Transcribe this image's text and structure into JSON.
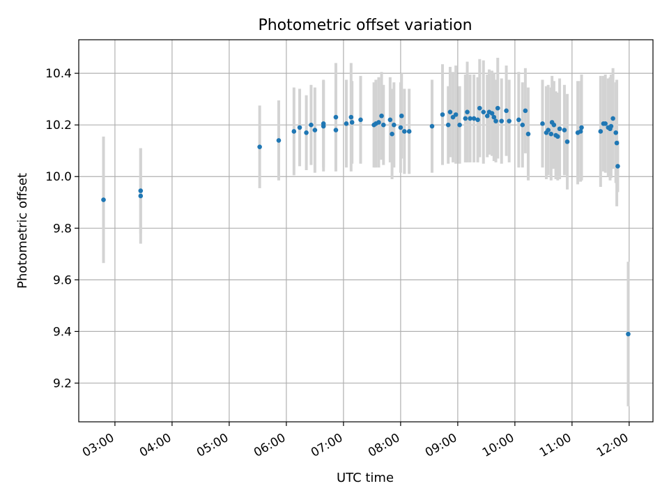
{
  "chart_data": {
    "type": "scatter",
    "title": "Photometric offset variation",
    "xlabel": "UTC time",
    "ylabel": "Photometric offset",
    "xlim": [
      "02:22",
      "12:25"
    ],
    "ylim": [
      9.05,
      10.53
    ],
    "x_ticks": [
      "03:00",
      "04:00",
      "05:00",
      "06:00",
      "07:00",
      "08:00",
      "09:00",
      "10:00",
      "11:00",
      "12:00"
    ],
    "y_ticks": [
      9.2,
      9.4,
      9.6,
      9.8,
      10.0,
      10.2,
      10.4
    ],
    "grid": true,
    "marker_color": "#1f77b4",
    "errorbar_color": "#d3d3d3",
    "series": [
      {
        "x": [
          "02:48",
          "03:27",
          "03:27",
          "05:32",
          "05:52",
          "06:08",
          "06:14",
          "06:21",
          "06:26",
          "06:30",
          "06:39",
          "06:39",
          "06:52",
          "06:52",
          "07:03",
          "07:08",
          "07:09",
          "07:18",
          "07:32",
          "07:34",
          "07:37",
          "07:40",
          "07:42",
          "07:49",
          "07:51",
          "07:53",
          "08:00",
          "08:01",
          "08:04",
          "08:09",
          "08:33",
          "08:44",
          "08:50",
          "08:52",
          "08:55",
          "08:58",
          "09:02",
          "09:08",
          "09:10",
          "09:13",
          "09:17",
          "09:21",
          "09:23",
          "09:27",
          "09:31",
          "09:33",
          "09:36",
          "09:38",
          "09:40",
          "09:42",
          "09:46",
          "09:51",
          "09:54",
          "10:04",
          "10:08",
          "10:11",
          "10:14",
          "10:29",
          "10:33",
          "10:35",
          "10:38",
          "10:39",
          "10:41",
          "10:43",
          "10:45",
          "10:47",
          "10:52",
          "10:55",
          "11:06",
          "11:09",
          "11:10",
          "11:30",
          "11:33",
          "11:35",
          "11:38",
          "11:40",
          "11:41",
          "11:43",
          "11:46",
          "11:47",
          "11:48"
        ],
        "y": [
          9.91,
          9.925,
          9.945,
          10.115,
          10.14,
          10.175,
          10.19,
          10.17,
          10.2,
          10.18,
          10.195,
          10.205,
          10.23,
          10.18,
          10.205,
          10.23,
          10.21,
          10.22,
          10.2,
          10.205,
          10.21,
          10.235,
          10.2,
          10.22,
          10.165,
          10.2,
          10.19,
          10.235,
          10.175,
          10.175,
          10.195,
          10.24,
          10.2,
          10.25,
          10.23,
          10.24,
          10.2,
          10.225,
          10.25,
          10.225,
          10.225,
          10.22,
          10.265,
          10.25,
          10.235,
          10.25,
          10.245,
          10.23,
          10.215,
          10.265,
          10.215,
          10.255,
          10.215,
          10.22,
          10.2,
          10.255,
          10.165,
          10.205,
          10.17,
          10.18,
          10.165,
          10.21,
          10.2,
          10.16,
          10.155,
          10.185,
          10.18,
          10.135,
          10.17,
          10.175,
          10.19,
          10.175,
          10.205,
          10.205,
          10.19,
          10.185,
          10.195,
          10.225,
          10.17,
          10.13,
          10.04
        ],
        "yerr": [
          0.245,
          0.185,
          0.165,
          0.16,
          0.155,
          0.17,
          0.15,
          0.145,
          0.155,
          0.165,
          0.175,
          0.17,
          0.21,
          0.15,
          0.17,
          0.21,
          0.16,
          0.17,
          0.165,
          0.17,
          0.175,
          0.17,
          0.155,
          0.165,
          0.175,
          0.165,
          0.175,
          0.165,
          0.165,
          0.165,
          0.18,
          0.195,
          0.15,
          0.175,
          0.175,
          0.19,
          0.15,
          0.17,
          0.195,
          0.17,
          0.17,
          0.165,
          0.19,
          0.2,
          0.16,
          0.165,
          0.165,
          0.17,
          0.16,
          0.195,
          0.165,
          0.175,
          0.16,
          0.185,
          0.165,
          0.165,
          0.18,
          0.17,
          0.18,
          0.175,
          0.18,
          0.18,
          0.17,
          0.17,
          0.17,
          0.195,
          0.175,
          0.185,
          0.2,
          0.195,
          0.205,
          0.215,
          0.185,
          0.19,
          0.19,
          0.2,
          0.2,
          0.195,
          0.195,
          0.245,
          0.1
        ]
      },
      {
        "x": [
          "11:59"
        ],
        "y": [
          9.39
        ],
        "yerr": [
          0.28
        ]
      }
    ]
  }
}
